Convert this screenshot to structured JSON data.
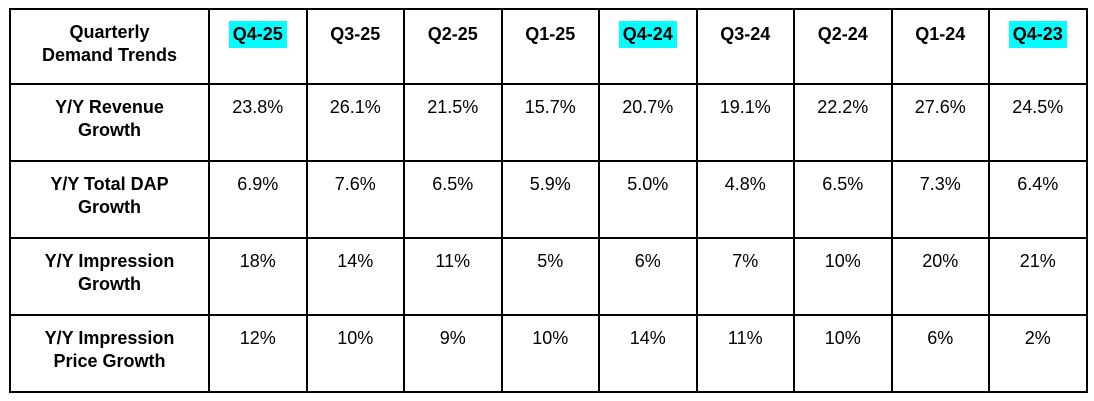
{
  "table": {
    "corner_label": "Quarterly Demand Trends",
    "highlight_color": "#00FFFF",
    "columns": [
      {
        "label": "Q4-25",
        "highlighted": true
      },
      {
        "label": "Q3-25",
        "highlighted": false
      },
      {
        "label": "Q2-25",
        "highlighted": false
      },
      {
        "label": "Q1-25",
        "highlighted": false
      },
      {
        "label": "Q4-24",
        "highlighted": true
      },
      {
        "label": "Q3-24",
        "highlighted": false
      },
      {
        "label": "Q2-24",
        "highlighted": false
      },
      {
        "label": "Q1-24",
        "highlighted": false
      },
      {
        "label": "Q4-23",
        "highlighted": true
      }
    ],
    "rows": [
      {
        "label": "Y/Y Revenue Growth",
        "values": [
          "23.8%",
          "26.1%",
          "21.5%",
          "15.7%",
          "20.7%",
          "19.1%",
          "22.2%",
          "27.6%",
          "24.5%"
        ]
      },
      {
        "label": "Y/Y Total DAP Growth",
        "values": [
          "6.9%",
          "7.6%",
          "6.5%",
          "5.9%",
          "5.0%",
          "4.8%",
          "6.5%",
          "7.3%",
          "6.4%"
        ]
      },
      {
        "label": "Y/Y Impression Growth",
        "values": [
          "18%",
          "14%",
          "11%",
          "5%",
          "6%",
          "7%",
          "10%",
          "20%",
          "21%"
        ]
      },
      {
        "label": "Y/Y Impression Price Growth",
        "values": [
          "12%",
          "10%",
          "9%",
          "10%",
          "14%",
          "11%",
          "10%",
          "6%",
          "2%"
        ]
      }
    ]
  },
  "chart_data": {
    "type": "table",
    "title": "Quarterly Demand Trends",
    "categories": [
      "Q4-25",
      "Q3-25",
      "Q2-25",
      "Q1-25",
      "Q4-24",
      "Q3-24",
      "Q2-24",
      "Q1-24",
      "Q4-23"
    ],
    "highlighted_categories": [
      "Q4-25",
      "Q4-24",
      "Q4-23"
    ],
    "unit": "%",
    "series": [
      {
        "name": "Y/Y Revenue Growth",
        "values": [
          23.8,
          26.1,
          21.5,
          15.7,
          20.7,
          19.1,
          22.2,
          27.6,
          24.5
        ]
      },
      {
        "name": "Y/Y Total DAP Growth",
        "values": [
          6.9,
          7.6,
          6.5,
          5.9,
          5.0,
          4.8,
          6.5,
          7.3,
          6.4
        ]
      },
      {
        "name": "Y/Y Impression Growth",
        "values": [
          18,
          14,
          11,
          5,
          6,
          7,
          10,
          20,
          21
        ]
      },
      {
        "name": "Y/Y Impression Price Growth",
        "values": [
          12,
          10,
          9,
          10,
          14,
          11,
          10,
          6,
          2
        ]
      }
    ]
  }
}
